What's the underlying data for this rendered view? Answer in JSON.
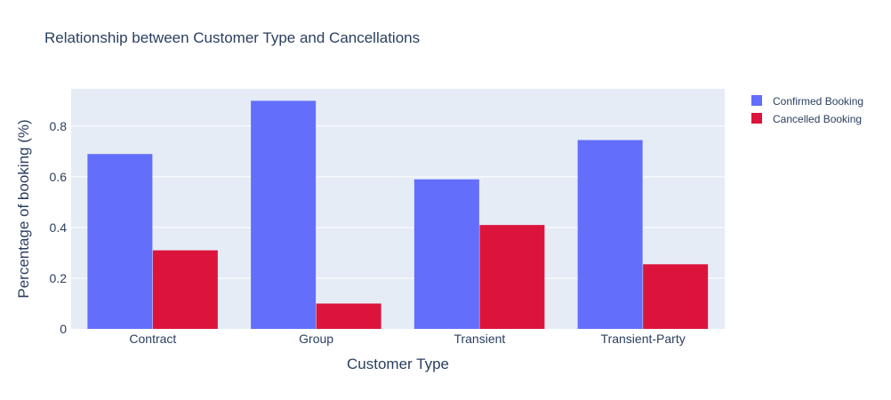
{
  "chart_data": {
    "type": "bar",
    "title": "Relationship between Customer Type and Cancellations",
    "xlabel": "Customer Type",
    "ylabel": "Percentage of booking (%)",
    "categories": [
      "Contract",
      "Group",
      "Transient",
      "Transient-Party"
    ],
    "series": [
      {
        "name": "Confirmed Booking",
        "color": "#636efa",
        "values": [
          0.69,
          0.9,
          0.59,
          0.745
        ]
      },
      {
        "name": "Cancelled Booking",
        "color": "#dc143c",
        "values": [
          0.31,
          0.1,
          0.41,
          0.255
        ]
      }
    ],
    "ylim": [
      0,
      0.947
    ],
    "yticks": [
      0,
      0.2,
      0.4,
      0.6,
      0.8
    ],
    "ytick_labels": [
      "0",
      "0.2",
      "0.4",
      "0.6",
      "0.8"
    ],
    "grid": true,
    "legend_position": "top-right",
    "plot_background": "#e5ecf6",
    "text_color": "#2a3f5f"
  }
}
